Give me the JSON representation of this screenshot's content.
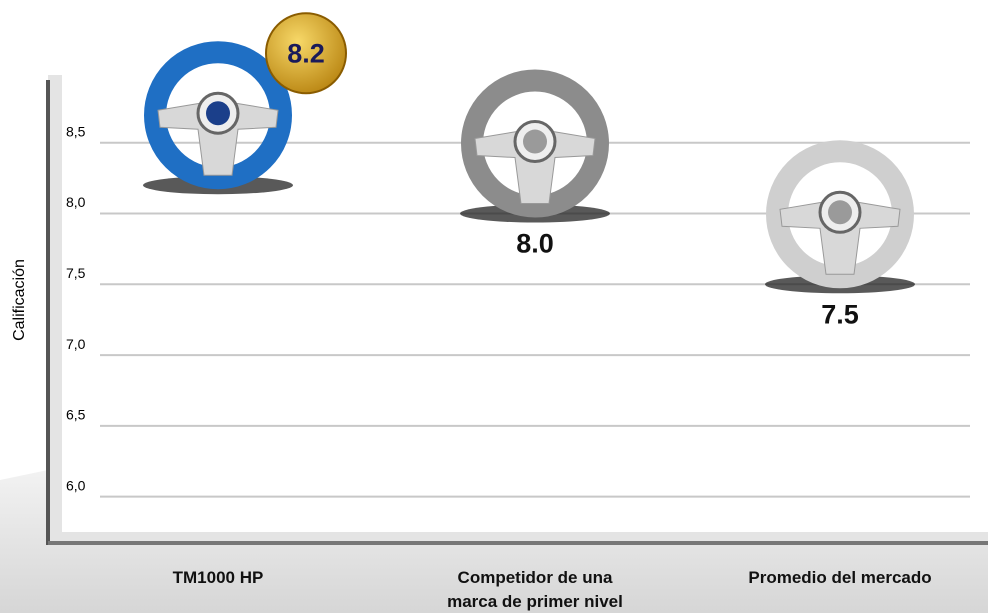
{
  "chart_data": {
    "type": "pictograph",
    "y_label": "Calificación",
    "categories": [
      "TM1000 HP",
      "Competidor de una marca de primer nivel",
      "Promedio del mercado"
    ],
    "values": [
      8.2,
      8.0,
      7.5
    ],
    "value_labels": [
      "8.2",
      "8.0",
      "7.5"
    ],
    "colors": [
      "#1f6fc4",
      "#8c8c8c",
      "#cfcfcf"
    ],
    "ylim": [
      5.75,
      9.0
    ],
    "yticks": [
      {
        "value": 6.0,
        "label": "6,0"
      },
      {
        "value": 6.5,
        "label": "6,5"
      },
      {
        "value": 7.0,
        "label": "7,0"
      },
      {
        "value": 7.5,
        "label": "7,5"
      },
      {
        "value": 8.0,
        "label": "8,0"
      },
      {
        "value": 8.5,
        "label": "8,5"
      }
    ],
    "grid": true
  }
}
